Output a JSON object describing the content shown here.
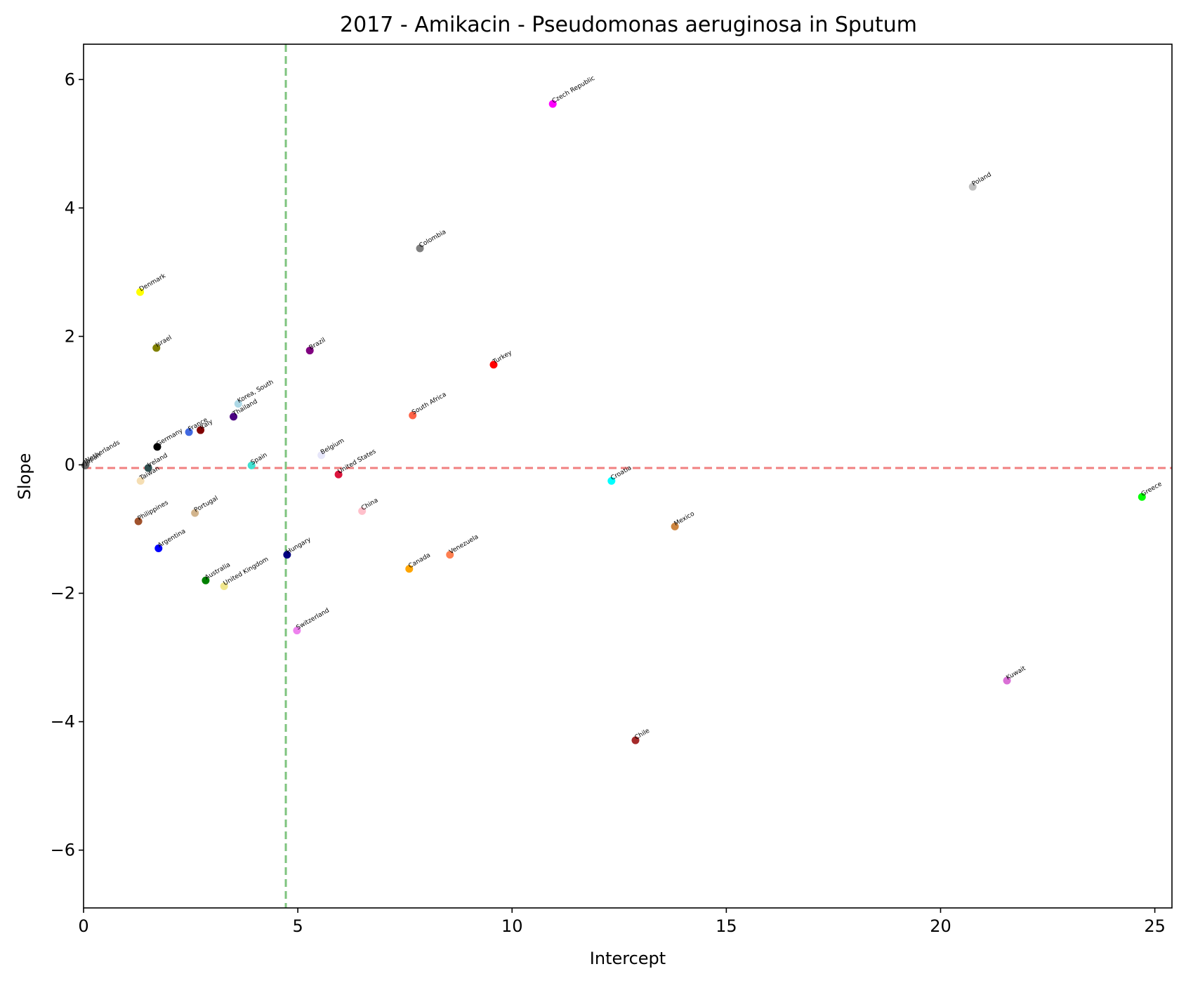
{
  "chart_data": {
    "type": "scatter",
    "title": "2017 - Amikacin - Pseudomonas aeruginosa in Sputum",
    "xlabel": "Intercept",
    "ylabel": "Slope",
    "xlim": [
      0,
      25.4
    ],
    "ylim": [
      -6.9,
      6.55
    ],
    "xticks": [
      0,
      5,
      10,
      15,
      20,
      25
    ],
    "yticks": [
      -6,
      -4,
      -2,
      0,
      2,
      4,
      6
    ],
    "xtick_labels": [
      "0",
      "5",
      "10",
      "15",
      "20",
      "25"
    ],
    "ytick_labels": [
      "−6",
      "−4",
      "−2",
      "0",
      "2",
      "4",
      "6"
    ],
    "grid": false,
    "reference_lines": [
      {
        "orientation": "vertical",
        "value": 4.72,
        "color": "#7fc47f",
        "style": "dashed"
      },
      {
        "orientation": "horizontal",
        "value": -0.05,
        "color": "#f08080",
        "style": "dashed"
      }
    ],
    "points": [
      {
        "label": "Czech Republic",
        "x": 10.95,
        "y": 5.62,
        "color": "#ff00ff"
      },
      {
        "label": "Poland",
        "x": 20.75,
        "y": 4.33,
        "color": "#c0c0c0"
      },
      {
        "label": "Colombia",
        "x": 7.85,
        "y": 3.37,
        "color": "#808080"
      },
      {
        "label": "Denmark",
        "x": 1.32,
        "y": 2.69,
        "color": "#ffff00"
      },
      {
        "label": "Israel",
        "x": 1.7,
        "y": 1.82,
        "color": "#808000"
      },
      {
        "label": "Brazil",
        "x": 5.28,
        "y": 1.78,
        "color": "#800080"
      },
      {
        "label": "Turkey",
        "x": 9.57,
        "y": 1.56,
        "color": "#ff0000"
      },
      {
        "label": "Korea, South",
        "x": 3.61,
        "y": 0.95,
        "color": "#add8e6"
      },
      {
        "label": "South Africa",
        "x": 7.68,
        "y": 0.77,
        "color": "#ff6347"
      },
      {
        "label": "Thailand",
        "x": 3.5,
        "y": 0.75,
        "color": "#4b0082"
      },
      {
        "label": "France",
        "x": 2.46,
        "y": 0.51,
        "color": "#4169e1"
      },
      {
        "label": "Italy",
        "x": 2.73,
        "y": 0.54,
        "color": "#800000"
      },
      {
        "label": "Germany",
        "x": 1.72,
        "y": 0.28,
        "color": "#000000"
      },
      {
        "label": "Netherlands",
        "x": 0.06,
        "y": 0.02,
        "color": "#a9a9a9"
      },
      {
        "label": "Japan",
        "x": 0.04,
        "y": -0.01,
        "color": "#696969"
      },
      {
        "label": "Belgium",
        "x": 5.55,
        "y": 0.15,
        "color": "#e6e6fa"
      },
      {
        "label": "Spain",
        "x": 3.92,
        "y": -0.01,
        "color": "#40e0d0"
      },
      {
        "label": "Ireland",
        "x": 1.51,
        "y": -0.05,
        "color": "#2f4f4f"
      },
      {
        "label": "United States",
        "x": 5.95,
        "y": -0.15,
        "color": "#dc143c"
      },
      {
        "label": "Taiwan",
        "x": 1.33,
        "y": -0.25,
        "color": "#f5deb3"
      },
      {
        "label": "Croatia",
        "x": 12.32,
        "y": -0.25,
        "color": "#00ffff"
      },
      {
        "label": "Greece",
        "x": 24.7,
        "y": -0.5,
        "color": "#00ff00"
      },
      {
        "label": "China",
        "x": 6.5,
        "y": -0.72,
        "color": "#ffc0cb"
      },
      {
        "label": "Portugal",
        "x": 2.6,
        "y": -0.75,
        "color": "#d2b48c"
      },
      {
        "label": "Philippines",
        "x": 1.28,
        "y": -0.88,
        "color": "#a0522d"
      },
      {
        "label": "Mexico",
        "x": 13.8,
        "y": -0.96,
        "color": "#cd853f"
      },
      {
        "label": "Argentina",
        "x": 1.75,
        "y": -1.3,
        "color": "#0000ff"
      },
      {
        "label": "Hungary",
        "x": 4.75,
        "y": -1.4,
        "color": "#000080"
      },
      {
        "label": "Venezuela",
        "x": 8.55,
        "y": -1.4,
        "color": "#ff7f50"
      },
      {
        "label": "Canada",
        "x": 7.6,
        "y": -1.62,
        "color": "#ffa500"
      },
      {
        "label": "Australia",
        "x": 2.85,
        "y": -1.8,
        "color": "#008000"
      },
      {
        "label": "United Kingdom",
        "x": 3.28,
        "y": -1.89,
        "color": "#f0e68c"
      },
      {
        "label": "Switzerland",
        "x": 4.98,
        "y": -2.58,
        "color": "#ee82ee"
      },
      {
        "label": "Kuwait",
        "x": 21.55,
        "y": -3.36,
        "color": "#da70d6"
      },
      {
        "label": "Chile",
        "x": 12.88,
        "y": -4.29,
        "color": "#a52a2a"
      }
    ]
  }
}
